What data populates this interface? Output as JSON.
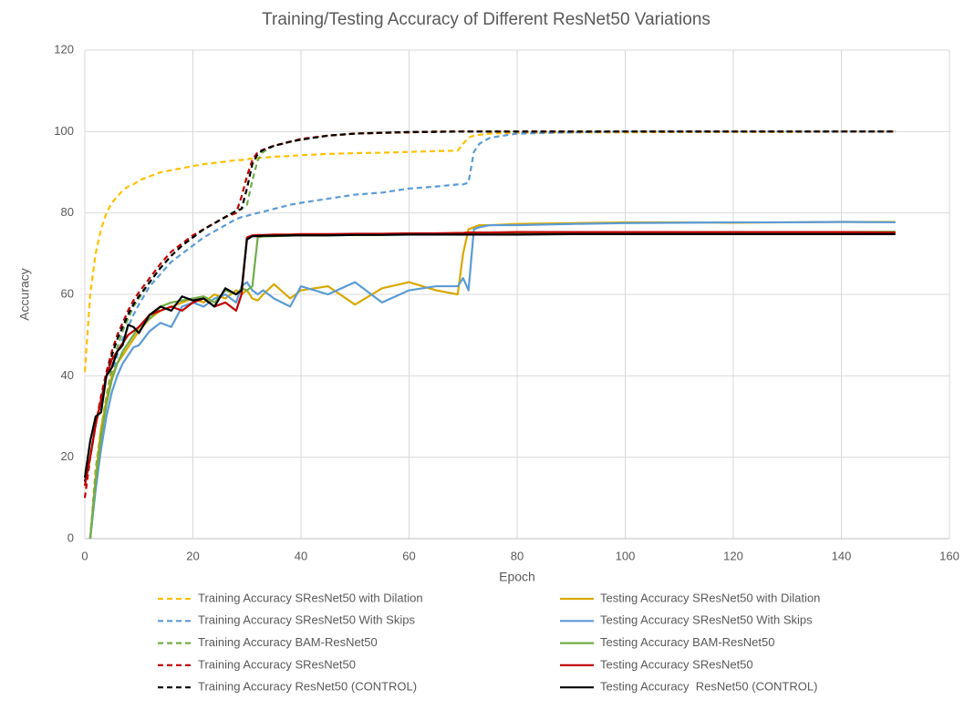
{
  "chart_data": {
    "type": "line",
    "title": "Training/Testing Accuracy of Different ResNet50 Variations",
    "x_label": "Epoch",
    "y_label": "Accuracy",
    "xlim": [
      0,
      160
    ],
    "xticks": [
      0,
      20,
      40,
      60,
      80,
      100,
      120,
      140,
      160
    ],
    "ylim": [
      0,
      120
    ],
    "yticks": [
      0,
      20,
      40,
      60,
      80,
      100,
      120
    ],
    "grid": true,
    "legend": "bottom",
    "x": [
      0,
      1,
      2,
      3,
      4,
      5,
      6,
      7,
      8,
      9,
      10,
      12,
      14,
      16,
      18,
      20,
      22,
      24,
      26,
      28,
      29,
      30,
      31,
      32,
      33,
      35,
      38,
      40,
      45,
      50,
      55,
      60,
      65,
      69,
      70,
      71,
      72,
      73,
      75,
      80,
      90,
      100,
      110,
      120,
      130,
      140,
      150
    ],
    "series": [
      {
        "name": "Training Accuracy SResNet50 with Dilation",
        "color": "#ffc000",
        "style": "dashed",
        "values": [
          41,
          60,
          70,
          76,
          80,
          82.5,
          84,
          85.5,
          86.5,
          87,
          88,
          89,
          90,
          90.5,
          91,
          91.5,
          92,
          92.3,
          92.6,
          93,
          93,
          93.2,
          93.4,
          93.5,
          93.6,
          93.8,
          94,
          94.2,
          94.5,
          94.7,
          94.8,
          95,
          95.2,
          95.3,
          97,
          98.5,
          99,
          99.2,
          99.5,
          99.7,
          99.8,
          99.8,
          99.9,
          99.9,
          99.9,
          100,
          100
        ]
      },
      {
        "name": "Training Accuracy SResNet50 With Skips",
        "color": "#5b9bd5",
        "style": "dashed",
        "values": [
          null,
          0,
          15,
          25,
          33,
          40,
          45,
          49,
          52,
          55,
          57.5,
          62,
          65,
          68,
          70,
          72,
          74,
          75.5,
          77,
          78.5,
          79,
          79.3,
          79.7,
          80,
          80.3,
          81,
          82,
          82.5,
          83.5,
          84.5,
          85,
          86,
          86.5,
          87,
          87,
          87.5,
          95,
          97,
          98.5,
          99.5,
          99.8,
          100,
          100,
          100,
          100,
          100,
          100
        ]
      },
      {
        "name": "Training Accuracy BAM-ResNet50",
        "color": "#70ad47",
        "style": "dashed",
        "values": [
          null,
          0,
          17,
          27,
          35,
          42,
          47,
          51,
          54,
          57,
          59,
          63,
          66.5,
          69.5,
          72,
          74,
          76,
          77.5,
          79,
          80.5,
          81,
          82,
          88,
          93,
          95,
          96.5,
          97.5,
          98,
          99,
          99.5,
          99.7,
          99.8,
          100,
          100,
          100,
          100,
          100,
          100,
          100,
          100,
          100,
          100,
          100,
          100,
          100,
          100,
          100
        ]
      },
      {
        "name": "Training Accuracy SResNet50",
        "color": "#c00000",
        "style": "dashed",
        "values": [
          10,
          20,
          28,
          35,
          41,
          46,
          50,
          53,
          56,
          58.5,
          60.5,
          64,
          67.5,
          70.5,
          72.5,
          74.5,
          76,
          77.5,
          79,
          80,
          84,
          89,
          93,
          95,
          95.5,
          96.5,
          97.5,
          98.2,
          99,
          99.5,
          99.7,
          99.8,
          100,
          100,
          100,
          100,
          100,
          100,
          100,
          100,
          100,
          100,
          100,
          100,
          100,
          100,
          100
        ]
      },
      {
        "name": "Training Accuracy ResNet50 (CONTROL)",
        "color": "#000000",
        "style": "dashed",
        "values": [
          14,
          20,
          28,
          34,
          40,
          45,
          49,
          52,
          55,
          57.5,
          59.5,
          63,
          66.5,
          69.5,
          72,
          74,
          76,
          77.5,
          79,
          80.5,
          81,
          86,
          92,
          94.5,
          95.5,
          96.5,
          97.5,
          98,
          99,
          99.5,
          99.7,
          99.9,
          99.9,
          100,
          100,
          100,
          100,
          100,
          100,
          100,
          100,
          100,
          100,
          100,
          100,
          100,
          100
        ]
      },
      {
        "name": "Testing Accuracy SResNet50 with Dilation",
        "color": "#d9a800",
        "style": "solid",
        "values": [
          null,
          0,
          15,
          27,
          34,
          40,
          43,
          45,
          47,
          49,
          51,
          54,
          56,
          57,
          58,
          59,
          58,
          60,
          59,
          61,
          60,
          61,
          59,
          58.5,
          60,
          62.5,
          59,
          61,
          62,
          57.5,
          61.5,
          63,
          61,
          60,
          70,
          76,
          76.5,
          77,
          77,
          77.3,
          77.5,
          77.7,
          77.7,
          77.6,
          77.7,
          77.8,
          77.8
        ]
      },
      {
        "name": "Testing Accuracy SResNet50 With Skips",
        "color": "#5b9bd5",
        "style": "solid",
        "values": [
          null,
          0,
          12,
          22,
          30,
          36,
          40,
          43,
          45,
          47,
          47.5,
          51,
          53,
          52,
          57,
          58,
          57,
          59,
          60,
          58,
          62,
          63,
          61,
          60,
          61,
          59,
          57,
          62,
          60,
          63,
          58,
          61,
          62,
          62,
          64,
          61,
          76,
          76.5,
          77,
          77,
          77.3,
          77.5,
          77.6,
          77.7,
          77.7,
          77.8,
          77.7
        ]
      },
      {
        "name": "Testing Accuracy BAM-ResNet50",
        "color": "#70ad47",
        "style": "solid",
        "values": [
          null,
          0,
          14,
          25,
          33,
          39,
          43,
          46,
          48,
          50,
          52,
          54,
          57,
          58,
          58.5,
          59,
          59.5,
          58,
          61,
          60,
          61.5,
          61,
          62,
          74,
          74.2,
          74.3,
          74.4,
          74.5,
          74.5,
          74.6,
          74.7,
          74.8,
          74.9,
          75,
          75,
          75,
          75,
          75,
          75.1,
          75.1,
          75.2,
          75.2,
          75.2,
          75.3,
          75.3,
          75.3,
          75.4
        ]
      },
      {
        "name": "Testing Accuracy SResNet50",
        "color": "#c00000",
        "style": "solid",
        "values": [
          13,
          20,
          28,
          34,
          40,
          44,
          46,
          48,
          50,
          51,
          52,
          55,
          56,
          57,
          56,
          58,
          59,
          57,
          58,
          56,
          60,
          74,
          74.5,
          74.6,
          74.6,
          74.7,
          74.7,
          74.8,
          74.8,
          74.9,
          74.9,
          75,
          75,
          75.1,
          75.1,
          75.2,
          75.2,
          75.2,
          75.2,
          75.3,
          75.3,
          75.3,
          75.3,
          75.3,
          75.3,
          75.3,
          75.2
        ]
      },
      {
        "name": "Testing Accuracy  ResNet50 (CONTROL)",
        "color": "#000000",
        "style": "solid",
        "values": [
          15,
          24,
          30,
          31,
          40,
          42,
          46,
          47.5,
          52.5,
          52,
          50.5,
          55,
          57,
          56,
          59.5,
          58.5,
          59,
          57,
          61.5,
          60,
          61,
          73.5,
          74.3,
          74.3,
          74.4,
          74.4,
          74.5,
          74.5,
          74.5,
          74.6,
          74.6,
          74.7,
          74.7,
          74.7,
          74.7,
          74.7,
          74.7,
          74.7,
          74.7,
          74.7,
          74.8,
          74.8,
          74.8,
          74.8,
          74.8,
          74.8,
          74.8
        ]
      }
    ]
  }
}
